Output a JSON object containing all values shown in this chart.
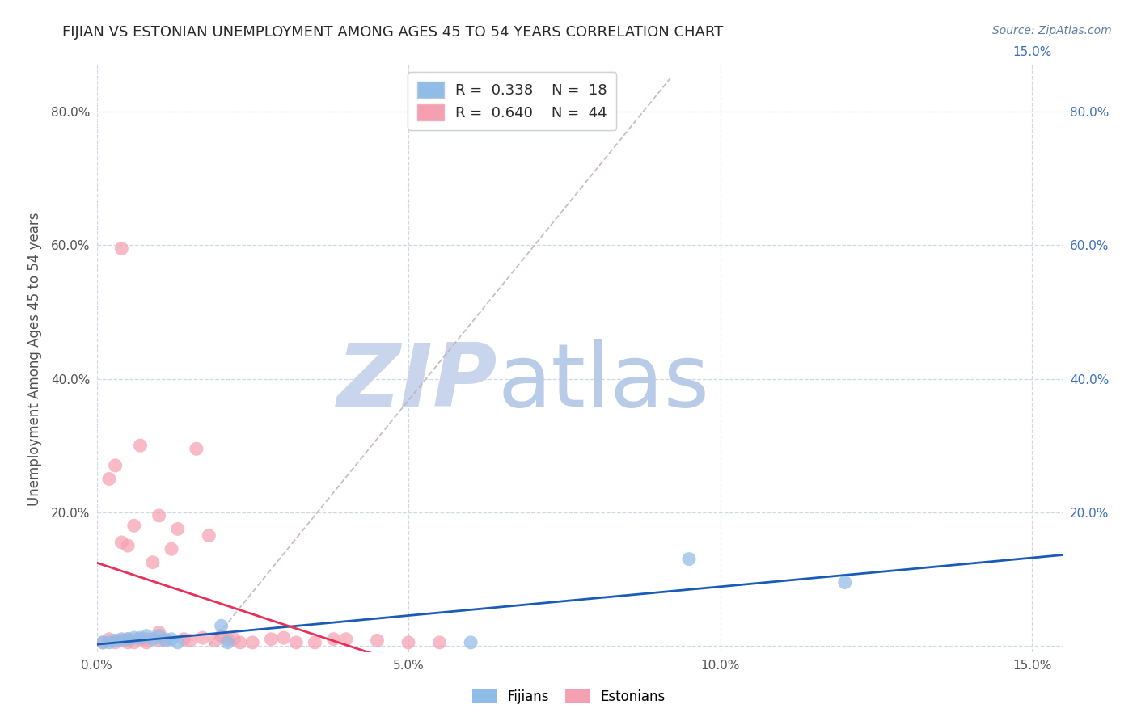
{
  "title": "FIJIAN VS ESTONIAN UNEMPLOYMENT AMONG AGES 45 TO 54 YEARS CORRELATION CHART",
  "source": "Source: ZipAtlas.com",
  "ylabel": "Unemployment Among Ages 45 to 54 years",
  "xlim": [
    0.0,
    0.155
  ],
  "ylim": [
    -0.01,
    0.87
  ],
  "xticks": [
    0.0,
    0.05,
    0.1,
    0.15
  ],
  "yticks": [
    0.0,
    0.2,
    0.4,
    0.6,
    0.8
  ],
  "xtick_labels_left": [
    "0.0%",
    "5.0%",
    "10.0%",
    "15.0%"
  ],
  "ytick_labels_left": [
    "",
    "20.0%",
    "40.0%",
    "60.0%",
    "80.0%"
  ],
  "ytick_labels_right": [
    "",
    "20.0%",
    "40.0%",
    "60.0%",
    "80.0%"
  ],
  "fijians_color": "#90bce8",
  "estonians_color": "#f4a0b0",
  "fijians_line_color": "#1a5cb5",
  "estonians_line_color": "#e8305a",
  "ref_line_color": "#c0b0b8",
  "legend_R_fijians": "0.338",
  "legend_N_fijians": "18",
  "legend_R_estonians": "0.640",
  "legend_N_estonians": "44",
  "watermark_zip": "ZIP",
  "watermark_atlas": "atlas",
  "watermark_color_zip": "#c8d5ec",
  "watermark_color_atlas": "#b8cce8",
  "fijians_x": [
    0.001,
    0.002,
    0.003,
    0.004,
    0.005,
    0.006,
    0.007,
    0.008,
    0.009,
    0.01,
    0.011,
    0.012,
    0.013,
    0.02,
    0.021,
    0.06,
    0.095,
    0.12
  ],
  "fijians_y": [
    0.005,
    0.005,
    0.008,
    0.01,
    0.01,
    0.012,
    0.012,
    0.015,
    0.01,
    0.015,
    0.008,
    0.01,
    0.005,
    0.03,
    0.005,
    0.005,
    0.13,
    0.095
  ],
  "estonians_x": [
    0.001,
    0.002,
    0.002,
    0.003,
    0.003,
    0.004,
    0.004,
    0.004,
    0.005,
    0.005,
    0.005,
    0.006,
    0.006,
    0.007,
    0.007,
    0.008,
    0.008,
    0.009,
    0.01,
    0.01,
    0.01,
    0.011,
    0.012,
    0.013,
    0.014,
    0.015,
    0.016,
    0.017,
    0.018,
    0.019,
    0.02,
    0.021,
    0.022,
    0.023,
    0.025,
    0.028,
    0.03,
    0.032,
    0.035,
    0.038,
    0.04,
    0.045,
    0.05,
    0.055
  ],
  "estonians_y": [
    0.005,
    0.01,
    0.25,
    0.005,
    0.27,
    0.008,
    0.155,
    0.595,
    0.005,
    0.01,
    0.15,
    0.005,
    0.18,
    0.01,
    0.3,
    0.005,
    0.01,
    0.125,
    0.008,
    0.02,
    0.195,
    0.01,
    0.145,
    0.175,
    0.01,
    0.008,
    0.295,
    0.012,
    0.165,
    0.008,
    0.015,
    0.01,
    0.01,
    0.005,
    0.005,
    0.01,
    0.012,
    0.005,
    0.005,
    0.01,
    0.01,
    0.008,
    0.005,
    0.005
  ],
  "background_color": "#ffffff",
  "grid_color": "#d0d8e8",
  "title_color": "#282828",
  "title_fontsize": 13,
  "axis_label_color": "#505050",
  "tick_color_left": "#505050",
  "tick_color_right": "#3b6fbb",
  "tick_fontsize": 11,
  "source_color": "#6080a0",
  "source_fontsize": 10
}
